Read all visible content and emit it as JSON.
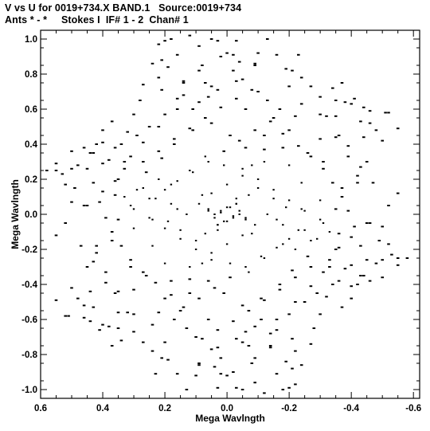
{
  "header": {
    "title_line1": "V vs U for 0019+734.X BAND.1   Source:0019+734",
    "title_line2": "Ants * - *     Stokes I  IF# 1 - 2  Chan# 1"
  },
  "chart_data": {
    "type": "scatter",
    "title": "V vs U for 0019+734.X BAND.1   Source:0019+734",
    "subtitle": "Ants * - *     Stokes I  IF# 1 - 2  Chan# 1",
    "xlabel": "Mega Wavlngth",
    "ylabel": "Mega Wavlngth",
    "xlim": [
      0.6,
      -0.62
    ],
    "ylim": [
      -1.05,
      1.05
    ],
    "x_ticks": [
      0.6,
      0.4,
      0.2,
      0.0,
      -0.2,
      -0.4,
      -0.6
    ],
    "x_tick_labels": [
      "0.6",
      "0.4",
      "0.2",
      "0.0",
      "-0.2",
      "-0.4",
      "-0.6"
    ],
    "y_ticks": [
      1.0,
      0.8,
      0.6,
      0.4,
      0.2,
      0.0,
      -0.2,
      -0.4,
      -0.6,
      -0.8,
      -1.0
    ],
    "y_tick_labels": [
      "1.0",
      "0.8",
      "0.6",
      "0.4",
      "0.2",
      "0.0",
      "-0.2",
      "-0.4",
      "-0.6",
      "-0.8",
      "-1.0"
    ],
    "x_reversed": true,
    "grid": false,
    "marker_color": "#000000",
    "points": [
      [
        0.2,
        0.99
      ],
      [
        0.18,
        1.0
      ],
      [
        0.12,
        1.02
      ],
      [
        0.03,
        0.99
      ],
      [
        -0.03,
        0.99
      ],
      [
        0.16,
        0.91
      ],
      [
        -0.02,
        0.91
      ],
      [
        -0.1,
        0.92
      ],
      [
        0.09,
        0.96
      ],
      [
        0.08,
        0.85
      ],
      [
        -0.02,
        0.82
      ],
      [
        -0.09,
        0.86
      ],
      [
        0.21,
        0.88
      ],
      [
        -0.2,
        0.73
      ],
      [
        -0.27,
        0.73
      ],
      [
        0.22,
        0.78
      ],
      [
        0.14,
        0.75
      ],
      [
        0.05,
        0.73
      ],
      [
        -0.05,
        0.77
      ],
      [
        -0.19,
        0.83
      ],
      [
        -0.37,
        0.75
      ],
      [
        -0.35,
        0.65
      ],
      [
        -0.4,
        0.63
      ],
      [
        -0.52,
        0.58
      ],
      [
        -0.46,
        0.59
      ],
      [
        -0.55,
        0.49
      ],
      [
        -0.48,
        0.48
      ],
      [
        -0.43,
        0.53
      ],
      [
        -0.5,
        0.42
      ],
      [
        -0.44,
        0.44
      ],
      [
        -0.3,
        0.57
      ],
      [
        -0.22,
        0.56
      ],
      [
        -0.39,
        0.39
      ],
      [
        -0.35,
        0.44
      ],
      [
        -0.31,
        0.3
      ],
      [
        0.43,
        0.35
      ],
      [
        0.4,
        0.41
      ],
      [
        0.34,
        0.4
      ],
      [
        0.31,
        0.33
      ],
      [
        0.38,
        0.31
      ],
      [
        0.5,
        0.26
      ],
      [
        0.55,
        0.25
      ],
      [
        0.48,
        0.28
      ],
      [
        0.44,
        0.35
      ],
      [
        0.52,
        0.17
      ],
      [
        0.55,
        -0.12
      ],
      [
        0.51,
        -0.58
      ],
      [
        0.46,
        -0.52
      ],
      [
        0.44,
        -0.61
      ],
      [
        0.41,
        -0.66
      ],
      [
        0.38,
        -0.64
      ],
      [
        0.34,
        -0.72
      ],
      [
        0.35,
        -0.56
      ],
      [
        0.3,
        -0.67
      ],
      [
        0.24,
        -0.63
      ],
      [
        0.32,
        -0.56
      ],
      [
        0.3,
        -0.43
      ],
      [
        0.39,
        -0.33
      ],
      [
        0.43,
        -0.27
      ],
      [
        0.42,
        -0.18
      ],
      [
        0.3,
        -0.08
      ],
      [
        0.24,
        -0.18
      ],
      [
        0.24,
        -0.78
      ],
      [
        0.21,
        -0.82
      ],
      [
        0.23,
        -0.91
      ],
      [
        0.16,
        -0.91
      ],
      [
        0.09,
        -0.85
      ],
      [
        0.13,
        -1.0
      ],
      [
        0.04,
        -0.87
      ],
      [
        0.0,
        -0.92
      ],
      [
        -0.05,
        -1.0
      ],
      [
        -0.02,
        -0.9
      ],
      [
        -0.09,
        -0.82
      ],
      [
        -0.07,
        -0.75
      ],
      [
        -0.14,
        -0.76
      ],
      [
        -0.19,
        -0.84
      ],
      [
        -0.22,
        -0.97
      ],
      [
        -0.24,
        -0.86
      ],
      [
        -0.27,
        -0.74
      ],
      [
        -0.28,
        -0.65
      ],
      [
        -0.3,
        -0.57
      ],
      [
        -0.37,
        -0.53
      ],
      [
        -0.4,
        -0.48
      ],
      [
        -0.42,
        -0.4
      ],
      [
        -0.46,
        -0.38
      ],
      [
        -0.5,
        -0.36
      ],
      [
        -0.55,
        -0.29
      ],
      [
        -0.58,
        -0.25
      ],
      [
        -0.53,
        -0.23
      ],
      [
        -0.49,
        -0.15
      ],
      [
        -0.46,
        -0.05
      ],
      [
        -0.43,
        -0.18
      ],
      [
        -0.4,
        -0.29
      ],
      [
        -0.35,
        -0.2
      ],
      [
        -0.33,
        -0.3
      ],
      [
        -0.27,
        -0.41
      ],
      [
        -0.22,
        -0.5
      ],
      [
        -0.16,
        -0.6
      ],
      [
        -0.09,
        -0.64
      ],
      [
        -0.03,
        -0.71
      ],
      [
        0.03,
        -0.76
      ],
      [
        0.1,
        -0.7
      ],
      [
        0.15,
        -0.55
      ],
      [
        0.12,
        -0.45
      ],
      [
        0.18,
        -0.38
      ],
      [
        0.2,
        -0.28
      ],
      [
        0.12,
        -0.3
      ],
      [
        0.06,
        -0.38
      ],
      [
        0.01,
        -0.45
      ],
      [
        -0.05,
        -0.52
      ],
      [
        -0.11,
        -0.48
      ],
      [
        -0.17,
        -0.4
      ],
      [
        -0.21,
        -0.32
      ],
      [
        -0.26,
        -0.24
      ],
      [
        -0.29,
        -0.14
      ],
      [
        -0.23,
        -0.09
      ],
      [
        -0.18,
        -0.17
      ],
      [
        -0.12,
        -0.25
      ],
      [
        -0.07,
        -0.33
      ],
      [
        -0.01,
        -0.28
      ],
      [
        0.05,
        -0.22
      ],
      [
        0.1,
        -0.15
      ],
      [
        0.15,
        -0.09
      ],
      [
        0.19,
        -0.04
      ],
      [
        0.24,
        -0.03
      ],
      [
        0.3,
        0.03
      ],
      [
        0.25,
        0.09
      ],
      [
        0.2,
        0.14
      ],
      [
        0.16,
        0.19
      ],
      [
        0.11,
        0.24
      ],
      [
        0.06,
        0.3
      ],
      [
        0.01,
        0.36
      ],
      [
        -0.04,
        0.42
      ],
      [
        -0.09,
        0.48
      ],
      [
        -0.14,
        0.53
      ],
      [
        -0.18,
        0.46
      ],
      [
        -0.23,
        0.39
      ],
      [
        -0.27,
        0.33
      ],
      [
        -0.31,
        0.26
      ],
      [
        -0.34,
        0.18
      ],
      [
        -0.37,
        0.1
      ],
      [
        -0.39,
        0.02
      ],
      [
        -0.41,
        -0.07
      ],
      [
        -0.36,
        -0.11
      ],
      [
        -0.31,
        -0.05
      ],
      [
        -0.25,
        0.02
      ],
      [
        -0.2,
        0.08
      ],
      [
        -0.15,
        0.14
      ],
      [
        -0.1,
        0.2
      ],
      [
        -0.05,
        0.26
      ],
      [
        0.0,
        0.17
      ],
      [
        0.05,
        0.12
      ],
      [
        0.09,
        0.06
      ],
      [
        0.13,
        0.0
      ],
      [
        0.18,
        0.06
      ],
      [
        0.22,
        0.2
      ],
      [
        0.27,
        0.15
      ],
      [
        0.33,
        0.1
      ],
      [
        0.36,
        0.19
      ],
      [
        0.33,
        0.26
      ],
      [
        0.27,
        0.3
      ],
      [
        0.22,
        0.36
      ],
      [
        0.17,
        0.43
      ],
      [
        0.12,
        0.49
      ],
      [
        0.07,
        0.55
      ],
      [
        0.02,
        0.61
      ],
      [
        -0.03,
        0.66
      ],
      [
        -0.08,
        0.71
      ],
      [
        -0.13,
        0.65
      ],
      [
        -0.17,
        0.6
      ],
      [
        0.11,
        0.6
      ],
      [
        0.16,
        0.66
      ],
      [
        0.2,
        0.57
      ],
      [
        0.25,
        0.5
      ],
      [
        0.29,
        0.45
      ],
      [
        0.06,
        0.67
      ],
      [
        -0.12,
        0.37
      ],
      [
        -0.07,
        0.11
      ],
      [
        -0.16,
        -0.03
      ],
      [
        -0.08,
        -0.11
      ],
      [
        0.03,
        -0.09
      ],
      [
        0.08,
        -0.28
      ],
      [
        -0.14,
        -0.68
      ],
      [
        -0.21,
        -0.71
      ],
      [
        0.06,
        -0.6
      ],
      [
        0.2,
        -0.48
      ],
      [
        0.26,
        -0.35
      ],
      [
        0.36,
        -0.45
      ],
      [
        0.37,
        -0.15
      ],
      [
        0.35,
        -0.03
      ],
      [
        0.45,
        0.05
      ],
      [
        0.4,
        0.13
      ],
      [
        -0.45,
        0.3
      ],
      [
        -0.47,
        0.18
      ],
      [
        -0.42,
        0.22
      ],
      [
        -0.52,
        0.05
      ],
      [
        -0.5,
        -0.07
      ],
      [
        -0.45,
        -0.26
      ],
      [
        -0.36,
        -0.38
      ],
      [
        -0.32,
        -0.47
      ],
      [
        0.02,
        0.02
      ],
      [
        0.04,
        0.0
      ],
      [
        -0.02,
        -0.01
      ],
      [
        0.0,
        0.04
      ],
      [
        0.01,
        -0.04
      ],
      [
        -0.04,
        0.02
      ],
      [
        0.06,
        0.03
      ],
      [
        -0.06,
        -0.02
      ],
      [
        0.03,
        -0.06
      ],
      [
        -0.03,
        0.06
      ]
    ]
  }
}
